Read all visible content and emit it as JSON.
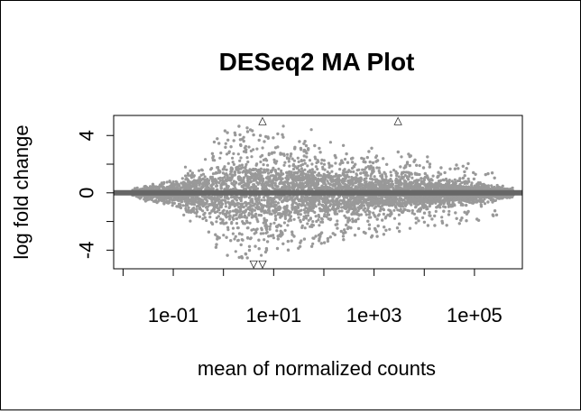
{
  "chart_data": {
    "type": "scatter",
    "title": "DESeq2 MA Plot",
    "xlabel": "mean of normalized counts",
    "ylabel": "log fold change",
    "x_scale": "log10",
    "xlim": [
      0.0065,
      900000
    ],
    "ylim": [
      -5.3,
      5.4
    ],
    "x_ticks": [
      0.01,
      0.1,
      1,
      10,
      100,
      1000,
      10000,
      100000
    ],
    "x_tick_labels": [
      {
        "value": 0.1,
        "label": "1e-01"
      },
      {
        "value": 10,
        "label": "1e+01"
      },
      {
        "value": 1000,
        "label": "1e+03"
      },
      {
        "value": 100000,
        "label": "1e+05"
      }
    ],
    "y_ticks": [
      -4,
      -2,
      0,
      2,
      4
    ],
    "y_tick_labels": [
      {
        "value": 4,
        "label": "4"
      },
      {
        "value": 0,
        "label": "0"
      },
      {
        "value": -4,
        "label": "-4"
      }
    ],
    "reference_line": {
      "y": 0,
      "color": "#666666"
    },
    "point_color": "#999999",
    "point_cloud": {
      "description": "dense cloud of genes; spread of log fold change is widest near mean counts ~1 and narrows toward high counts",
      "envelope": [
        {
          "x": 0.015,
          "lfc": 0.3
        },
        {
          "x": 0.1,
          "lfc": 0.9
        },
        {
          "x": 0.5,
          "lfc": 2.0
        },
        {
          "x": 1.0,
          "lfc": 3.0
        },
        {
          "x": 2.0,
          "lfc": 3.4
        },
        {
          "x": 10,
          "lfc": 2.9
        },
        {
          "x": 100,
          "lfc": 2.3
        },
        {
          "x": 1000,
          "lfc": 1.8
        },
        {
          "x": 10000,
          "lfc": 1.3
        },
        {
          "x": 100000,
          "lfc": 0.7
        },
        {
          "x": 500000,
          "lfc": 0.3
        }
      ]
    },
    "outliers_shown_as_triangles": [
      {
        "x": 6,
        "lfc": 5.0,
        "direction": "up"
      },
      {
        "x": 3000,
        "lfc": 5.0,
        "direction": "up"
      },
      {
        "x": 4,
        "lfc": -5.0,
        "direction": "down"
      },
      {
        "x": 6,
        "lfc": -5.0,
        "direction": "down"
      }
    ]
  }
}
